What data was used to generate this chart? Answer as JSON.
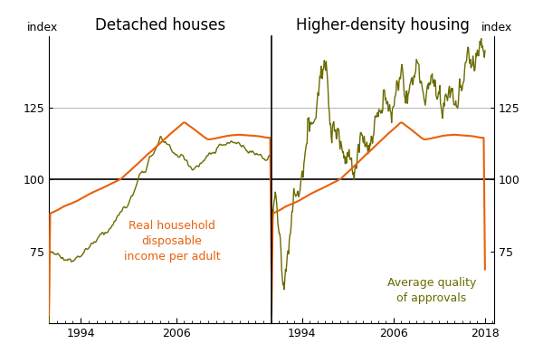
{
  "title_left": "Detached houses",
  "title_right": "Higher-density housing",
  "ylabel_left": "index",
  "ylabel_right": "index",
  "ylim": [
    50,
    150
  ],
  "yticks": [
    75,
    100,
    125
  ],
  "color_quality": "#6b6b00",
  "color_income": "#e8610a",
  "lw_quality": 1.0,
  "lw_income": 1.5,
  "annotation_income": "Real household\ndisposable\nincome per adult",
  "annotation_quality": "Average quality\nof approvals",
  "title_fontsize": 12,
  "tick_fontsize": 9,
  "annotation_fontsize": 9,
  "xticks_left": [
    1994,
    2006
  ],
  "xticks_right": [
    1994,
    2006,
    2018
  ],
  "xlim_left": [
    1990.0,
    2018.0
  ],
  "xlim_right": [
    1990.0,
    2019.2
  ]
}
